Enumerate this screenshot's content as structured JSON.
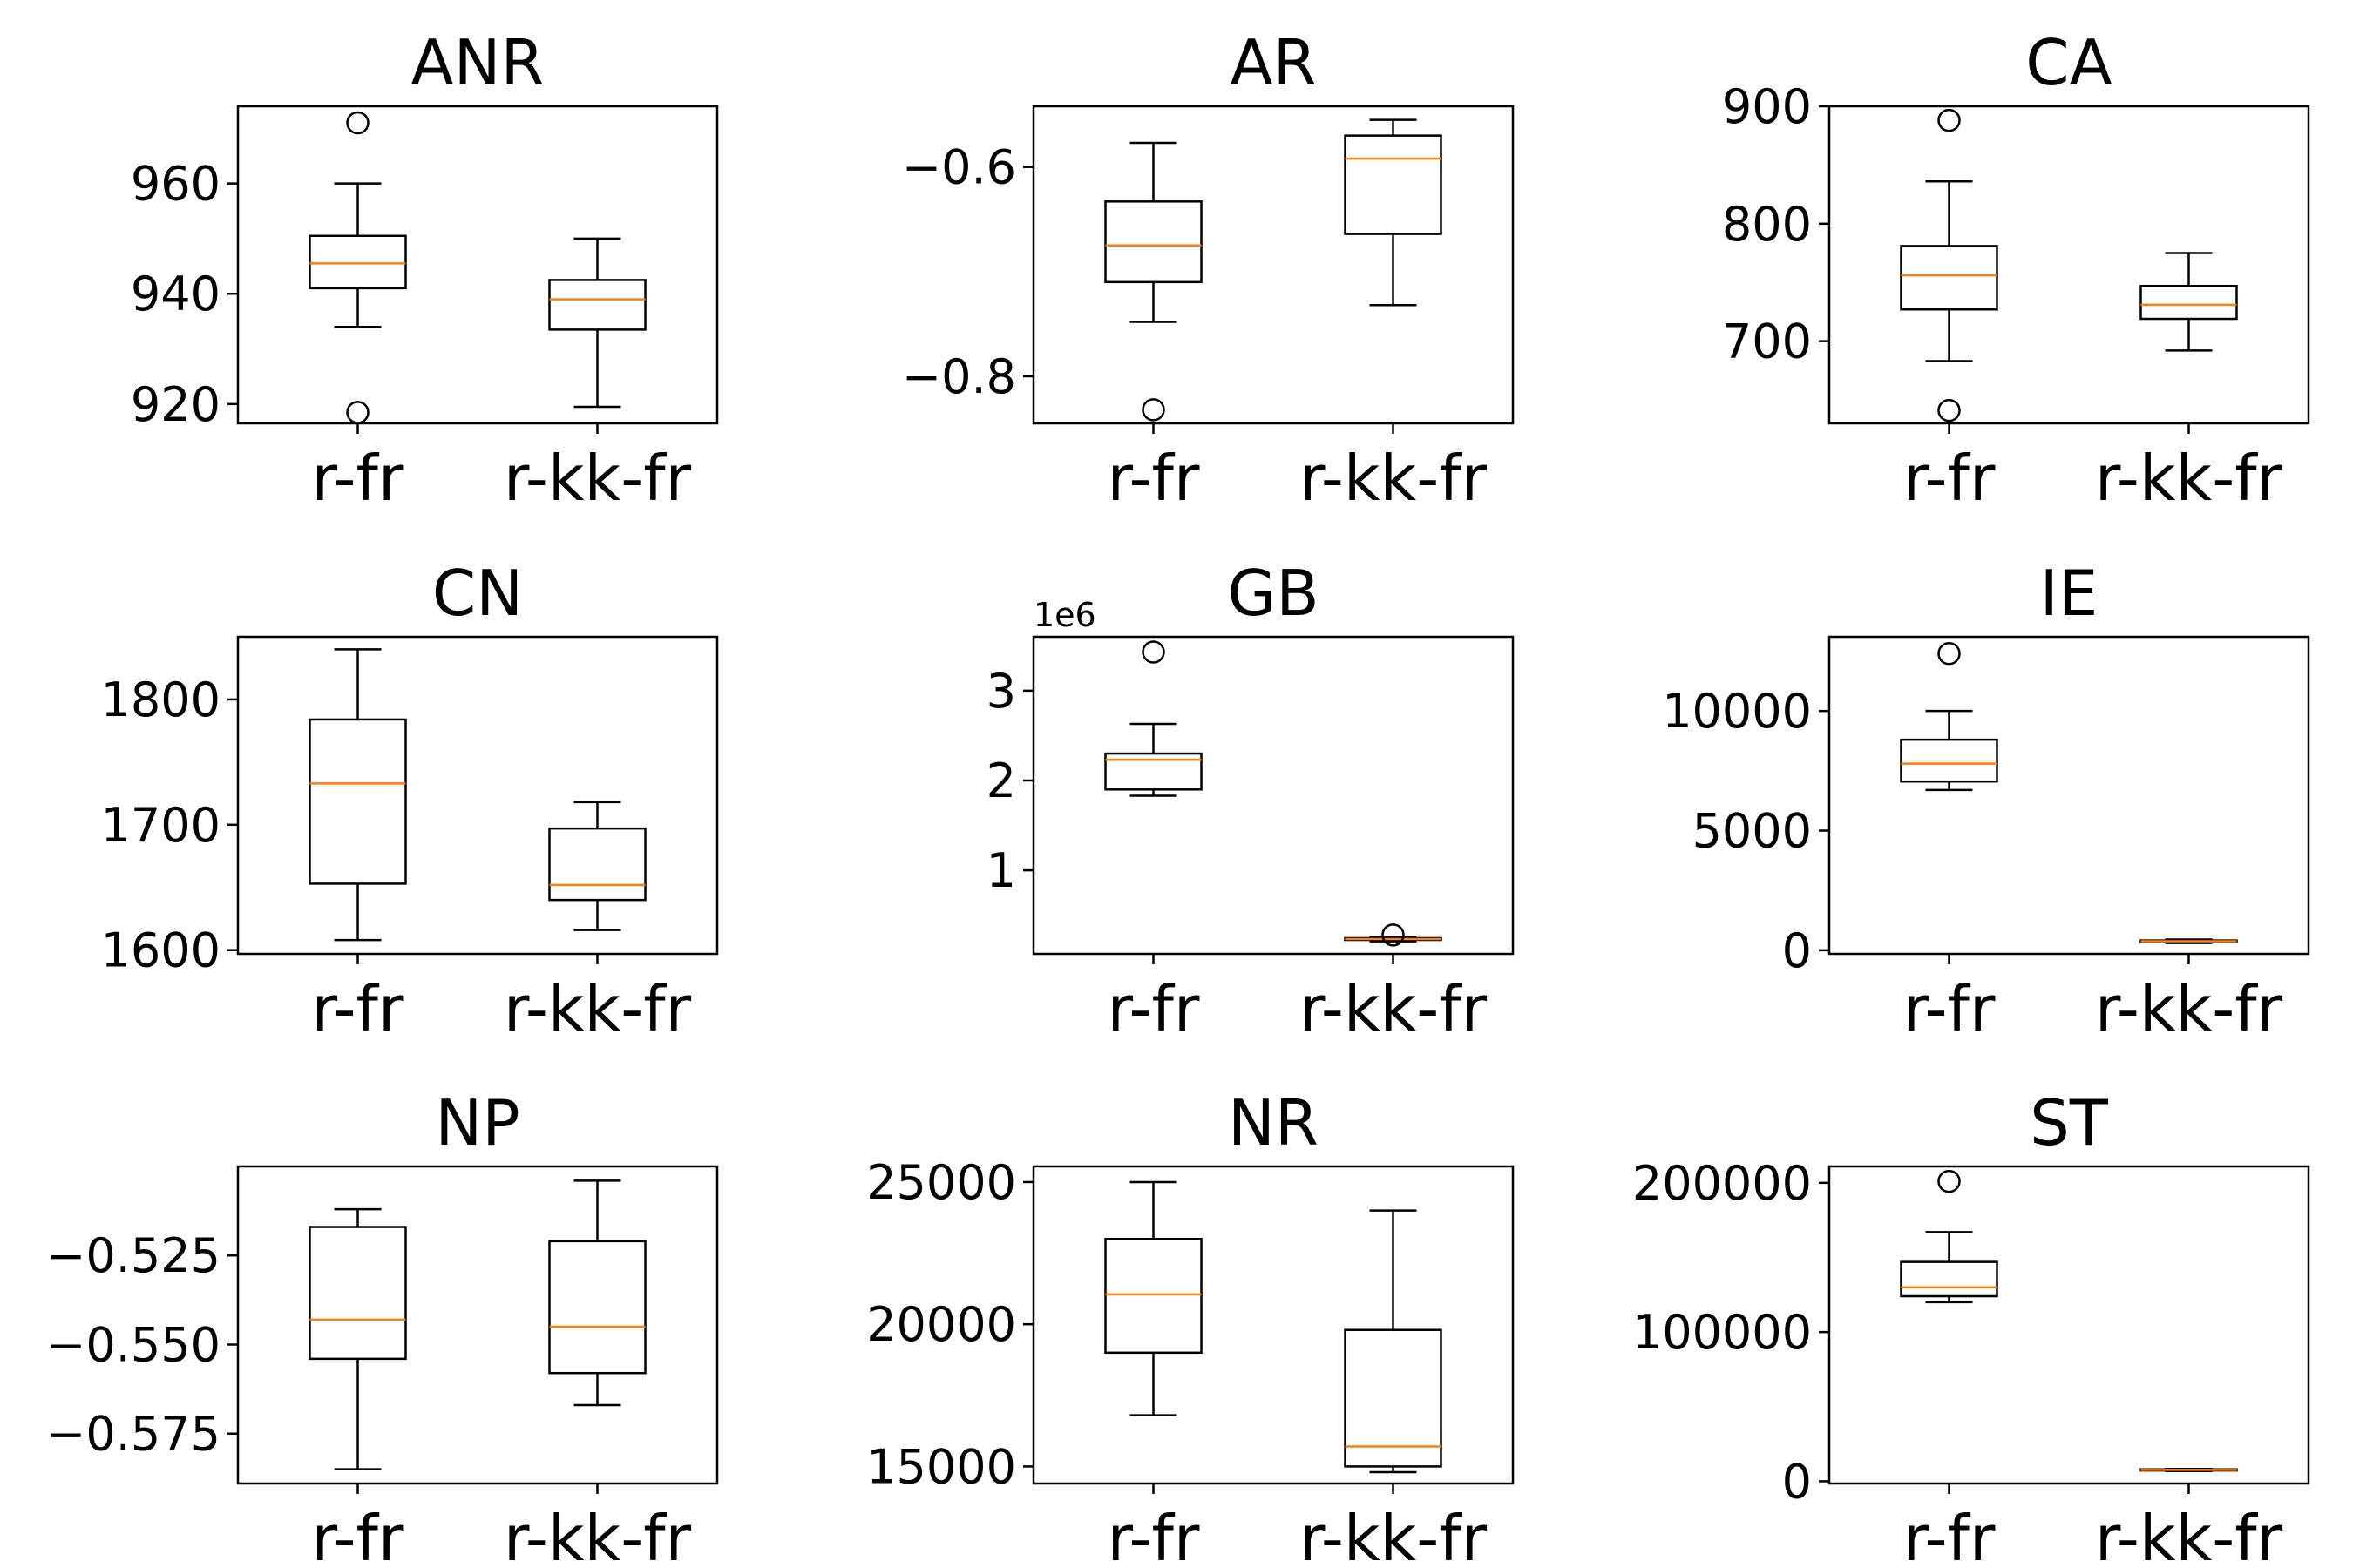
{
  "chart_data": [
    {
      "type": "boxplot",
      "title": "ANR",
      "categories": [
        "r-fr",
        "r-kk-fr"
      ],
      "yticks": [
        920,
        940,
        960
      ],
      "ylim": [
        916.5,
        974
      ],
      "boxes": [
        {
          "category": "r-fr",
          "whisker_low": 934,
          "q1": 941,
          "median": 945.5,
          "q3": 950.5,
          "whisker_high": 960,
          "outliers": [
            971,
            918.5
          ]
        },
        {
          "category": "r-kk-fr",
          "whisker_low": 919.5,
          "q1": 933.5,
          "median": 939,
          "q3": 942.5,
          "whisker_high": 950,
          "outliers": []
        }
      ]
    },
    {
      "type": "boxplot",
      "title": "AR",
      "categories": [
        "r-fr",
        "r-kk-fr"
      ],
      "yticks": [
        -0.8,
        -0.6
      ],
      "ytick_labels": [
        "−0.8",
        "−0.6"
      ],
      "ylim": [
        -0.845,
        -0.542
      ],
      "boxes": [
        {
          "category": "r-fr",
          "whisker_low": -0.748,
          "q1": -0.71,
          "median": -0.675,
          "q3": -0.633,
          "whisker_high": -0.577,
          "outliers": [
            -0.832
          ]
        },
        {
          "category": "r-kk-fr",
          "whisker_low": -0.732,
          "q1": -0.664,
          "median": -0.592,
          "q3": -0.57,
          "whisker_high": -0.555,
          "outliers": []
        }
      ]
    },
    {
      "type": "boxplot",
      "title": "CA",
      "categories": [
        "r-fr",
        "r-kk-fr"
      ],
      "yticks": [
        700,
        800,
        900
      ],
      "ylim": [
        630,
        900
      ],
      "boxes": [
        {
          "category": "r-fr",
          "whisker_low": 683,
          "q1": 727,
          "median": 756,
          "q3": 781,
          "whisker_high": 836,
          "outliers": [
            888,
            641
          ]
        },
        {
          "category": "r-kk-fr",
          "whisker_low": 692,
          "q1": 719,
          "median": 731,
          "q3": 747,
          "whisker_high": 775,
          "outliers": []
        }
      ]
    },
    {
      "type": "boxplot",
      "title": "CN",
      "categories": [
        "r-fr",
        "r-kk-fr"
      ],
      "yticks": [
        1600,
        1700,
        1800
      ],
      "ylim": [
        1597,
        1850
      ],
      "boxes": [
        {
          "category": "r-fr",
          "whisker_low": 1608,
          "q1": 1653,
          "median": 1733,
          "q3": 1784,
          "whisker_high": 1840,
          "outliers": []
        },
        {
          "category": "r-kk-fr",
          "whisker_low": 1616,
          "q1": 1640,
          "median": 1652,
          "q3": 1697,
          "whisker_high": 1718,
          "outliers": []
        }
      ]
    },
    {
      "type": "boxplot",
      "title": "GB",
      "offset_label": "1e6",
      "categories": [
        "r-fr",
        "r-kk-fr"
      ],
      "yticks": [
        1,
        2,
        3
      ],
      "ylim": [
        0.07,
        3.6
      ],
      "boxes": [
        {
          "category": "r-fr",
          "whisker_low": 1.83,
          "q1": 1.9,
          "median": 2.23,
          "q3": 2.3,
          "whisker_high": 2.63,
          "outliers": [
            3.43
          ]
        },
        {
          "category": "r-kk-fr",
          "whisker_low": 0.21,
          "q1": 0.225,
          "median": 0.235,
          "q3": 0.245,
          "whisker_high": 0.26,
          "outliers": [
            0.28
          ]
        }
      ]
    },
    {
      "type": "boxplot",
      "title": "IE",
      "categories": [
        "r-fr",
        "r-kk-fr"
      ],
      "yticks": [
        0,
        5000,
        10000
      ],
      "ylim": [
        -150,
        13100
      ],
      "boxes": [
        {
          "category": "r-fr",
          "whisker_low": 6700,
          "q1": 7050,
          "median": 7800,
          "q3": 8800,
          "whisker_high": 10000,
          "outliers": [
            12400
          ]
        },
        {
          "category": "r-kk-fr",
          "whisker_low": 300,
          "q1": 340,
          "median": 380,
          "q3": 410,
          "whisker_high": 450,
          "outliers": []
        }
      ]
    },
    {
      "type": "boxplot",
      "title": "NP",
      "categories": [
        "r-fr",
        "r-kk-fr"
      ],
      "yticks": [
        -0.575,
        -0.55,
        -0.525
      ],
      "ytick_labels": [
        "−0.575",
        "−0.550",
        "−0.525"
      ],
      "ylim": [
        -0.589,
        -0.5
      ],
      "boxes": [
        {
          "category": "r-fr",
          "whisker_low": -0.585,
          "q1": -0.554,
          "median": -0.543,
          "q3": -0.517,
          "whisker_high": -0.512,
          "outliers": []
        },
        {
          "category": "r-kk-fr",
          "whisker_low": -0.567,
          "q1": -0.558,
          "median": -0.545,
          "q3": -0.521,
          "whisker_high": -0.504,
          "outliers": []
        }
      ]
    },
    {
      "type": "boxplot",
      "title": "NR",
      "categories": [
        "r-fr",
        "r-kk-fr"
      ],
      "yticks": [
        15000,
        20000,
        25000
      ],
      "ylim": [
        14400,
        25550
      ],
      "boxes": [
        {
          "category": "r-fr",
          "whisker_low": 16800,
          "q1": 19000,
          "median": 21050,
          "q3": 23000,
          "whisker_high": 25000,
          "outliers": []
        },
        {
          "category": "r-kk-fr",
          "whisker_low": 14800,
          "q1": 15000,
          "median": 15700,
          "q3": 19800,
          "whisker_high": 24000,
          "outliers": []
        }
      ]
    },
    {
      "type": "boxplot",
      "title": "ST",
      "categories": [
        "r-fr",
        "r-kk-fr"
      ],
      "yticks": [
        0,
        100000,
        200000
      ],
      "ylim": [
        -1500,
        211000
      ],
      "boxes": [
        {
          "category": "r-fr",
          "whisker_low": 120000,
          "q1": 124000,
          "median": 130000,
          "q3": 147000,
          "whisker_high": 167000,
          "outliers": [
            201000
          ]
        },
        {
          "category": "r-kk-fr",
          "whisker_low": 6800,
          "q1": 7200,
          "median": 7600,
          "q3": 8000,
          "whisker_high": 8300,
          "outliers": []
        }
      ]
    }
  ]
}
